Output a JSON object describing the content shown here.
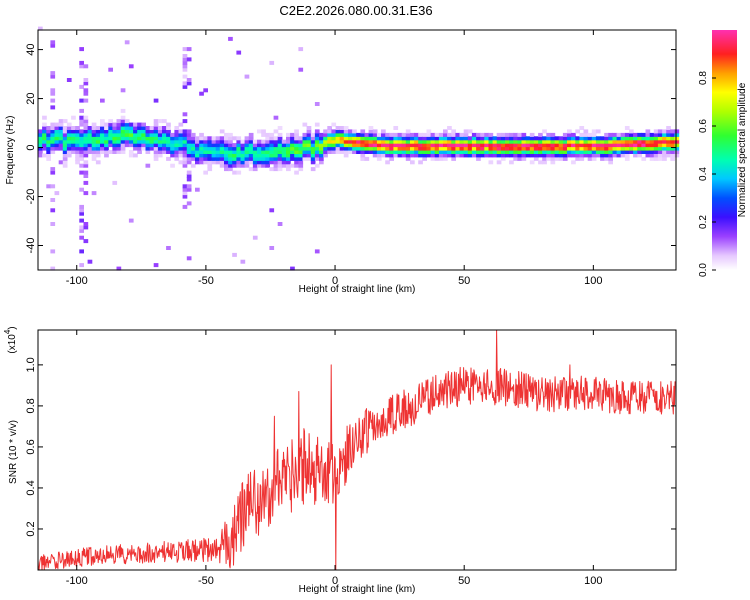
{
  "title": "C2E2.2026.080.00.31.E36",
  "chart_data": [
    {
      "type": "heatmap",
      "title": "C2E2.2026.080.00.31.E36",
      "xlabel": "Height of straight line (km)",
      "ylabel": "Frequency (Hz)",
      "xlim": [
        -115,
        132
      ],
      "ylim": [
        -50,
        48
      ],
      "xticks": [
        -100,
        -50,
        0,
        50,
        100
      ],
      "yticks": [
        -40,
        -20,
        0,
        20,
        40
      ],
      "colorbar": {
        "label": "Normalized spectral amplitude",
        "range": [
          0,
          1
        ],
        "ticks": [
          "0.0",
          "0.2",
          "0.4",
          "0.6",
          "0.8"
        ],
        "tick_values": [
          0,
          0.2,
          0.4,
          0.6,
          0.8
        ]
      },
      "ridge": {
        "description_points_x": [
          -115,
          -100,
          -80,
          -60,
          -50,
          -40,
          -30,
          -20,
          -10,
          -5,
          0,
          5,
          10,
          20,
          40,
          60,
          80,
          100,
          120,
          132
        ],
        "description_points_freq": [
          3,
          2,
          5,
          1,
          -3,
          -3,
          -2,
          -2,
          -1,
          1,
          3,
          2,
          1,
          0,
          0,
          0,
          0,
          0,
          1,
          2
        ],
        "peak_amplitude": [
          0.5,
          0.5,
          0.55,
          0.45,
          0.45,
          0.5,
          0.5,
          0.55,
          0.6,
          0.7,
          0.8,
          0.9,
          0.95,
          0.97,
          0.97,
          0.97,
          0.95,
          0.95,
          0.97,
          0.95
        ]
      },
      "spikes": [
        {
          "x": -110,
          "freq_range": [
            -50,
            45
          ]
        },
        {
          "x": -98,
          "freq_range": [
            -45,
            40
          ]
        },
        {
          "x": -58,
          "freq_range": [
            -25,
            42
          ]
        }
      ]
    },
    {
      "type": "line",
      "xlabel": "Height of straight line (km)",
      "ylabel": "SNR (10 * v/v)",
      "y_multiplier": "(x10",
      "y_exponent": "4",
      "y_multiplier_close": ")",
      "xlim": [
        -115,
        132
      ],
      "ylim": [
        0,
        1.17
      ],
      "xticks": [
        -100,
        -50,
        0,
        50,
        100
      ],
      "yticks": [
        0.2,
        0.4,
        0.6,
        0.8,
        1.0
      ],
      "ytick_labels": [
        "0.2",
        "0.4",
        "0.6",
        "0.8",
        "1.0"
      ],
      "color": "#ee3333",
      "trend": {
        "x": [
          -115,
          -100,
          -80,
          -60,
          -45,
          -40,
          -35,
          -30,
          -25,
          -20,
          -15,
          -10,
          -5,
          0,
          5,
          10,
          20,
          30,
          40,
          50,
          60,
          70,
          80,
          90,
          100,
          110,
          120,
          132
        ],
        "y": [
          0.03,
          0.06,
          0.08,
          0.09,
          0.1,
          0.16,
          0.28,
          0.34,
          0.38,
          0.43,
          0.48,
          0.5,
          0.52,
          0.45,
          0.58,
          0.66,
          0.74,
          0.8,
          0.86,
          0.9,
          0.9,
          0.88,
          0.86,
          0.86,
          0.86,
          0.84,
          0.84,
          0.84
        ]
      },
      "noise_amplitude": {
        "x": [
          -115,
          -45,
          -40,
          -10,
          0,
          20,
          132
        ],
        "a": [
          0.04,
          0.06,
          0.18,
          0.2,
          0.15,
          0.1,
          0.08
        ]
      },
      "spikes": [
        {
          "x": -23.5,
          "y": 0.75
        },
        {
          "x": -14,
          "y": 0.87
        },
        {
          "x": -1.5,
          "y": 1.0
        },
        {
          "x": 0.2,
          "y": 0.0
        },
        {
          "x": 62.5,
          "y": 1.17
        },
        {
          "x": 91,
          "y": 1.0
        }
      ]
    }
  ]
}
